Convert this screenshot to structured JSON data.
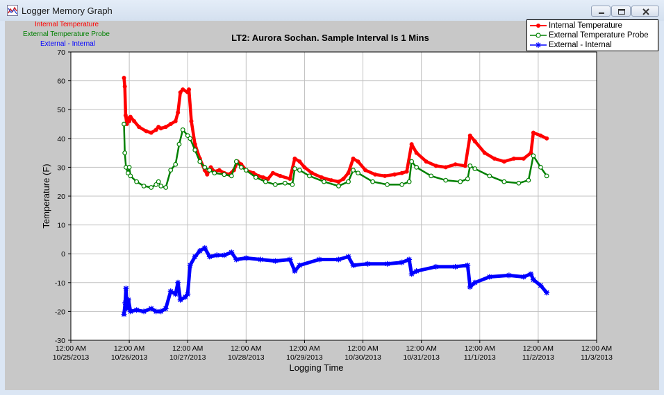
{
  "window": {
    "title": "Logger Memory Graph",
    "minimize_icon": "minimize-icon",
    "maximize_icon": "restore-icon",
    "close_icon": "close-icon"
  },
  "top_left_legend": [
    {
      "label": "Internal Temperature",
      "color": "#ff0000"
    },
    {
      "label": "External Temperature Probe",
      "color": "#008000"
    },
    {
      "label": "External - Internal",
      "color": "#0000ff"
    }
  ],
  "legend": [
    {
      "label": "Internal Temperature",
      "color": "#ff0000",
      "marker": "filled-circle"
    },
    {
      "label": "External Temperature Probe",
      "color": "#008000",
      "marker": "open-circle"
    },
    {
      "label": "External - Internal",
      "color": "#0000ff",
      "marker": "star"
    }
  ],
  "chart_data": {
    "type": "line",
    "title": "LT2: Aurora Sochan.  Sample Interval Is 1 Mins",
    "xlabel": "Logging Time",
    "ylabel": "Temperature (F)",
    "ylim": [
      -30,
      70
    ],
    "y_ticks": [
      -30,
      -20,
      -10,
      0,
      10,
      20,
      30,
      40,
      50,
      60,
      70
    ],
    "xlim": [
      "10/25/2013 12:00 AM",
      "11/3/2013 12:00 AM"
    ],
    "x_ticks": [
      {
        "time": "12:00 AM",
        "date": "10/25/2013"
      },
      {
        "time": "12:00 AM",
        "date": "10/26/2013"
      },
      {
        "time": "12:00 AM",
        "date": "10/27/2013"
      },
      {
        "time": "12:00 AM",
        "date": "10/28/2013"
      },
      {
        "time": "12:00 AM",
        "date": "10/29/2013"
      },
      {
        "time": "12:00 AM",
        "date": "10/30/2013"
      },
      {
        "time": "12:00 AM",
        "date": "10/31/2013"
      },
      {
        "time": "12:00 AM",
        "date": "11/1/2013"
      },
      {
        "time": "12:00 AM",
        "date": "11/2/2013"
      },
      {
        "time": "12:00 AM",
        "date": "11/3/2013"
      }
    ],
    "grid": true,
    "legend_position": "top-right",
    "series": [
      {
        "name": "Internal Temperature",
        "color": "#ff0000",
        "points": [
          [
            "10/25/2013 9:50 PM",
            61
          ],
          [
            "10/25/2013 10:10 PM",
            58
          ],
          [
            "10/25/2013 10:30 PM",
            48
          ],
          [
            "10/25/2013 11:00 PM",
            45
          ],
          [
            "10/25/2013 11:30 PM",
            47
          ],
          [
            "10/26/2013 12:00 AM",
            46
          ],
          [
            "10/26/2013 12:30 AM",
            47.5
          ],
          [
            "10/26/2013 2:00 AM",
            46
          ],
          [
            "10/26/2013 4:00 AM",
            44
          ],
          [
            "10/26/2013 7:00 AM",
            42.5
          ],
          [
            "10/26/2013 9:00 AM",
            42
          ],
          [
            "10/26/2013 11:00 AM",
            43
          ],
          [
            "10/26/2013 12:00 PM",
            44
          ],
          [
            "10/26/2013 1:00 PM",
            43.5
          ],
          [
            "10/26/2013 3:00 PM",
            44
          ],
          [
            "10/26/2013 5:00 PM",
            45
          ],
          [
            "10/26/2013 7:00 PM",
            46
          ],
          [
            "10/26/2013 8:00 PM",
            49
          ],
          [
            "10/26/2013 9:00 PM",
            56
          ],
          [
            "10/26/2013 10:00 PM",
            57
          ],
          [
            "10/27/2013 12:00 AM",
            56
          ],
          [
            "10/27/2013 12:30 AM",
            57
          ],
          [
            "10/27/2013 1:30 AM",
            46
          ],
          [
            "10/27/2013 3:00 AM",
            38
          ],
          [
            "10/27/2013 5:00 AM",
            33
          ],
          [
            "10/27/2013 7:00 AM",
            29
          ],
          [
            "10/27/2013 8:00 AM",
            27.5
          ],
          [
            "10/27/2013 9:30 AM",
            30
          ],
          [
            "10/27/2013 11:00 AM",
            28.5
          ],
          [
            "10/27/2013 1:00 PM",
            29
          ],
          [
            "10/27/2013 3:00 PM",
            28
          ],
          [
            "10/27/2013 5:00 PM",
            27.5
          ],
          [
            "10/27/2013 7:00 PM",
            29
          ],
          [
            "10/27/2013 8:30 PM",
            32
          ],
          [
            "10/27/2013 10:00 PM",
            31
          ],
          [
            "10/28/2013 12:00 AM",
            29
          ],
          [
            "10/28/2013 3:00 AM",
            28
          ],
          [
            "10/28/2013 5:00 AM",
            27
          ],
          [
            "10/28/2013 7:00 AM",
            26.5
          ],
          [
            "10/28/2013 9:00 AM",
            26
          ],
          [
            "10/28/2013 11:00 AM",
            28
          ],
          [
            "10/28/2013 2:00 PM",
            27
          ],
          [
            "10/28/2013 6:00 PM",
            26
          ],
          [
            "10/28/2013 8:00 PM",
            33
          ],
          [
            "10/28/2013 10:00 PM",
            32
          ],
          [
            "10/29/2013 12:00 AM",
            30
          ],
          [
            "10/29/2013 3:00 AM",
            28
          ],
          [
            "10/29/2013 7:00 AM",
            26.5
          ],
          [
            "10/29/2013 11:00 AM",
            25.5
          ],
          [
            "10/29/2013 2:00 PM",
            25
          ],
          [
            "10/29/2013 4:00 PM",
            26
          ],
          [
            "10/29/2013 6:00 PM",
            28
          ],
          [
            "10/29/2013 8:00 PM",
            33
          ],
          [
            "10/29/2013 10:00 PM",
            32
          ],
          [
            "10/30/2013 1:00 AM",
            29
          ],
          [
            "10/30/2013 5:00 AM",
            27.5
          ],
          [
            "10/30/2013 9:00 AM",
            27
          ],
          [
            "10/30/2013 1:00 PM",
            27.5
          ],
          [
            "10/30/2013 4:00 PM",
            28
          ],
          [
            "10/30/2013 6:00 PM",
            28.5
          ],
          [
            "10/30/2013 8:00 PM",
            38
          ],
          [
            "10/30/2013 10:00 PM",
            35
          ],
          [
            "10/31/2013 2:00 AM",
            32
          ],
          [
            "10/31/2013 6:00 AM",
            30.5
          ],
          [
            "10/31/2013 10:00 AM",
            30
          ],
          [
            "10/31/2013 2:00 PM",
            31
          ],
          [
            "10/31/2013 6:00 PM",
            30.5
          ],
          [
            "10/31/2013 8:00 PM",
            41
          ],
          [
            "10/31/2013 10:00 PM",
            39
          ],
          [
            "11/1/2013 2:00 AM",
            35
          ],
          [
            "11/1/2013 6:00 AM",
            33
          ],
          [
            "11/1/2013 10:00 AM",
            32
          ],
          [
            "11/1/2013 2:00 PM",
            33
          ],
          [
            "11/1/2013 6:00 PM",
            33
          ],
          [
            "11/1/2013 9:00 PM",
            35
          ],
          [
            "11/1/2013 10:00 PM",
            42
          ],
          [
            "11/2/2013 1:00 AM",
            41
          ],
          [
            "11/2/2013 3:30 AM",
            40
          ]
        ]
      },
      {
        "name": "External Temperature Probe",
        "color": "#008000",
        "points": [
          [
            "10/25/2013 9:50 PM",
            45
          ],
          [
            "10/25/2013 10:10 PM",
            35
          ],
          [
            "10/25/2013 10:40 PM",
            30
          ],
          [
            "10/25/2013 11:30 PM",
            28
          ],
          [
            "10/26/2013 12:00 AM",
            30
          ],
          [
            "10/26/2013 12:30 AM",
            27
          ],
          [
            "10/26/2013 3:00 AM",
            25
          ],
          [
            "10/26/2013 6:00 AM",
            23.5
          ],
          [
            "10/26/2013 9:00 AM",
            23
          ],
          [
            "10/26/2013 11:00 AM",
            24
          ],
          [
            "10/26/2013 12:00 PM",
            25
          ],
          [
            "10/26/2013 1:00 PM",
            23.5
          ],
          [
            "10/26/2013 3:00 PM",
            23
          ],
          [
            "10/26/2013 5:00 PM",
            29
          ],
          [
            "10/26/2013 7:00 PM",
            31
          ],
          [
            "10/26/2013 8:30 PM",
            38
          ],
          [
            "10/26/2013 10:00 PM",
            43
          ],
          [
            "10/27/2013 12:00 AM",
            41
          ],
          [
            "10/27/2013 1:00 AM",
            40
          ],
          [
            "10/27/2013 3:00 AM",
            36
          ],
          [
            "10/27/2013 5:00 AM",
            32
          ],
          [
            "10/27/2013 7:00 AM",
            30
          ],
          [
            "10/27/2013 9:00 AM",
            29
          ],
          [
            "10/27/2013 11:00 AM",
            28
          ],
          [
            "10/27/2013 3:00 PM",
            27.5
          ],
          [
            "10/27/2013 6:00 PM",
            27
          ],
          [
            "10/27/2013 8:00 PM",
            32
          ],
          [
            "10/27/2013 10:00 PM",
            30
          ],
          [
            "10/28/2013 12:00 AM",
            29
          ],
          [
            "10/28/2013 4:00 AM",
            26.5
          ],
          [
            "10/28/2013 8:00 AM",
            25
          ],
          [
            "10/28/2013 12:00 PM",
            24
          ],
          [
            "10/28/2013 4:00 PM",
            24.5
          ],
          [
            "10/28/2013 7:00 PM",
            24
          ],
          [
            "10/28/2013 8:00 PM",
            29.5
          ],
          [
            "10/28/2013 10:00 PM",
            29
          ],
          [
            "10/29/2013 2:00 AM",
            27
          ],
          [
            "10/29/2013 8:00 AM",
            25
          ],
          [
            "10/29/2013 2:00 PM",
            23.5
          ],
          [
            "10/29/2013 6:00 PM",
            25
          ],
          [
            "10/29/2013 8:00 PM",
            29
          ],
          [
            "10/29/2013 10:00 PM",
            28
          ],
          [
            "10/30/2013 4:00 AM",
            25
          ],
          [
            "10/30/2013 10:00 AM",
            24
          ],
          [
            "10/30/2013 4:00 PM",
            24
          ],
          [
            "10/30/2013 7:00 PM",
            25
          ],
          [
            "10/30/2013 8:00 PM",
            32
          ],
          [
            "10/30/2013 10:00 PM",
            30
          ],
          [
            "10/31/2013 4:00 AM",
            27
          ],
          [
            "10/31/2013 10:00 AM",
            25.5
          ],
          [
            "10/31/2013 4:00 PM",
            25
          ],
          [
            "10/31/2013 7:00 PM",
            26
          ],
          [
            "10/31/2013 8:00 PM",
            30.5
          ],
          [
            "10/31/2013 10:00 PM",
            29.5
          ],
          [
            "11/1/2013 4:00 AM",
            27
          ],
          [
            "11/1/2013 10:00 AM",
            25
          ],
          [
            "11/1/2013 4:00 PM",
            24.5
          ],
          [
            "11/1/2013 8:00 PM",
            25.5
          ],
          [
            "11/1/2013 10:00 PM",
            34
          ],
          [
            "11/2/2013 1:00 AM",
            30
          ],
          [
            "11/2/2013 3:30 AM",
            27
          ]
        ]
      },
      {
        "name": "External - Internal",
        "color": "#0000ff",
        "points": [
          [
            "10/25/2013 9:50 PM",
            -21
          ],
          [
            "10/25/2013 10:20 PM",
            -17
          ],
          [
            "10/25/2013 10:40 PM",
            -12
          ],
          [
            "10/25/2013 11:00 PM",
            -19
          ],
          [
            "10/25/2013 11:40 PM",
            -16
          ],
          [
            "10/26/2013 12:30 AM",
            -20
          ],
          [
            "10/26/2013 3:00 AM",
            -19.5
          ],
          [
            "10/26/2013 6:00 AM",
            -20
          ],
          [
            "10/26/2013 9:00 AM",
            -19
          ],
          [
            "10/26/2013 11:00 AM",
            -20
          ],
          [
            "10/26/2013 1:00 PM",
            -20
          ],
          [
            "10/26/2013 3:00 PM",
            -19
          ],
          [
            "10/26/2013 5:00 PM",
            -13
          ],
          [
            "10/26/2013 7:00 PM",
            -14
          ],
          [
            "10/26/2013 8:00 PM",
            -10
          ],
          [
            "10/26/2013 9:00 PM",
            -16
          ],
          [
            "10/26/2013 11:00 PM",
            -15
          ],
          [
            "10/27/2013 12:00 AM",
            -14
          ],
          [
            "10/27/2013 1:00 AM",
            -4
          ],
          [
            "10/27/2013 3:00 AM",
            -1
          ],
          [
            "10/27/2013 5:00 AM",
            1
          ],
          [
            "10/27/2013 7:00 AM",
            2
          ],
          [
            "10/27/2013 9:00 AM",
            -1
          ],
          [
            "10/27/2013 12:00 PM",
            -0.5
          ],
          [
            "10/27/2013 3:00 PM",
            -0.5
          ],
          [
            "10/27/2013 6:00 PM",
            0.5
          ],
          [
            "10/27/2013 8:00 PM",
            -2
          ],
          [
            "10/28/2013 12:00 AM",
            -1.5
          ],
          [
            "10/28/2013 6:00 AM",
            -2
          ],
          [
            "10/28/2013 12:00 PM",
            -2.5
          ],
          [
            "10/28/2013 6:00 PM",
            -2
          ],
          [
            "10/28/2013 8:00 PM",
            -6
          ],
          [
            "10/28/2013 10:00 PM",
            -4
          ],
          [
            "10/29/2013 6:00 AM",
            -2
          ],
          [
            "10/29/2013 2:00 PM",
            -2
          ],
          [
            "10/29/2013 6:00 PM",
            -1
          ],
          [
            "10/29/2013 8:00 PM",
            -4
          ],
          [
            "10/30/2013 2:00 AM",
            -3.5
          ],
          [
            "10/30/2013 10:00 AM",
            -3.5
          ],
          [
            "10/30/2013 4:00 PM",
            -3
          ],
          [
            "10/30/2013 7:00 PM",
            -2
          ],
          [
            "10/30/2013 8:00 PM",
            -7
          ],
          [
            "10/30/2013 10:00 PM",
            -6
          ],
          [
            "10/31/2013 6:00 AM",
            -4.5
          ],
          [
            "10/31/2013 2:00 PM",
            -4.5
          ],
          [
            "10/31/2013 7:00 PM",
            -4
          ],
          [
            "10/31/2013 8:00 PM",
            -11.5
          ],
          [
            "10/31/2013 10:00 PM",
            -10
          ],
          [
            "11/1/2013 4:00 AM",
            -8
          ],
          [
            "11/1/2013 12:00 PM",
            -7.5
          ],
          [
            "11/1/2013 6:00 PM",
            -8
          ],
          [
            "11/1/2013 9:00 PM",
            -7
          ],
          [
            "11/1/2013 10:00 PM",
            -9
          ],
          [
            "11/2/2013 1:00 AM",
            -11
          ],
          [
            "11/2/2013 3:30 AM",
            -13.5
          ]
        ]
      }
    ]
  }
}
